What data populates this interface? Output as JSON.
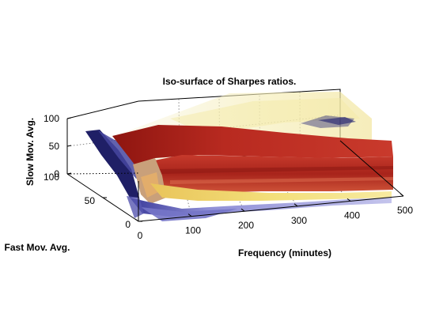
{
  "chart_data": {
    "type": "isosurface-3d",
    "title": "Iso-surface of Sharpes ratios.",
    "xlabel": "Frequency (minutes)",
    "ylabel": "Fast Mov. Avg.",
    "zlabel": "Slow Mov. Avg.",
    "xlim": [
      0,
      500
    ],
    "ylim": [
      0,
      100
    ],
    "zlim": [
      0,
      100
    ],
    "x_ticks": [
      0,
      100,
      200,
      300,
      400,
      500
    ],
    "y_ticks": [
      0,
      50,
      100
    ],
    "z_ticks": [
      0,
      50,
      100
    ],
    "grid": true,
    "colors": {
      "dark_red": "#9e1a16",
      "red": "#c8352a",
      "orange": "#e07a3a",
      "yellow": "#f4e08a",
      "pale_yellow": "#f7f0c0",
      "lavender": "#9a9ad8",
      "navy": "#1e1e6e"
    }
  }
}
